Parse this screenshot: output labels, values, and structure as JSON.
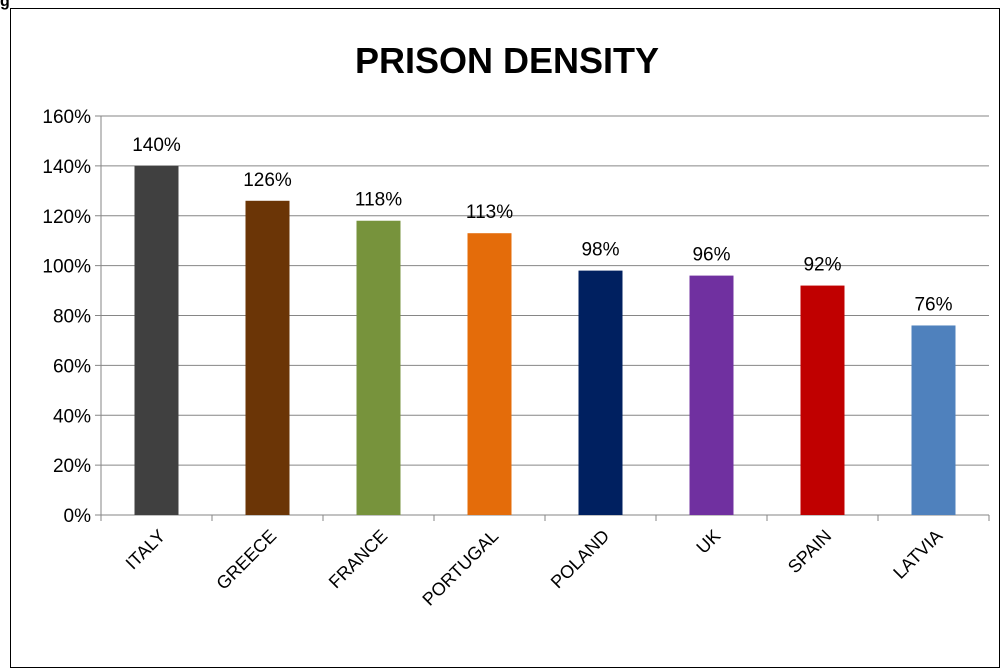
{
  "fragment_text": "g",
  "chart_data": {
    "type": "bar",
    "title": "PRISON DENSITY",
    "categories": [
      "ITALY",
      "GREECE",
      "FRANCE",
      "PORTUGAL",
      "POLAND",
      "UK",
      "SPAIN",
      "LATVIA"
    ],
    "values": [
      140,
      126,
      118,
      113,
      98,
      96,
      92,
      76
    ],
    "data_labels": [
      "140%",
      "126%",
      "118%",
      "113%",
      "98%",
      "96%",
      "92%",
      "76%"
    ],
    "colors": [
      "#404040",
      "#6b3506",
      "#77933c",
      "#e46c0a",
      "#002060",
      "#7030a0",
      "#c00000",
      "#4f81bd"
    ],
    "ylim": [
      0,
      160
    ],
    "yticks": [
      0,
      20,
      40,
      60,
      80,
      100,
      120,
      140,
      160
    ],
    "ytick_labels": [
      "0%",
      "20%",
      "40%",
      "60%",
      "80%",
      "100%",
      "120%",
      "140%",
      "160%"
    ],
    "xlabel": "",
    "ylabel": "",
    "grid": true,
    "legend": false
  }
}
